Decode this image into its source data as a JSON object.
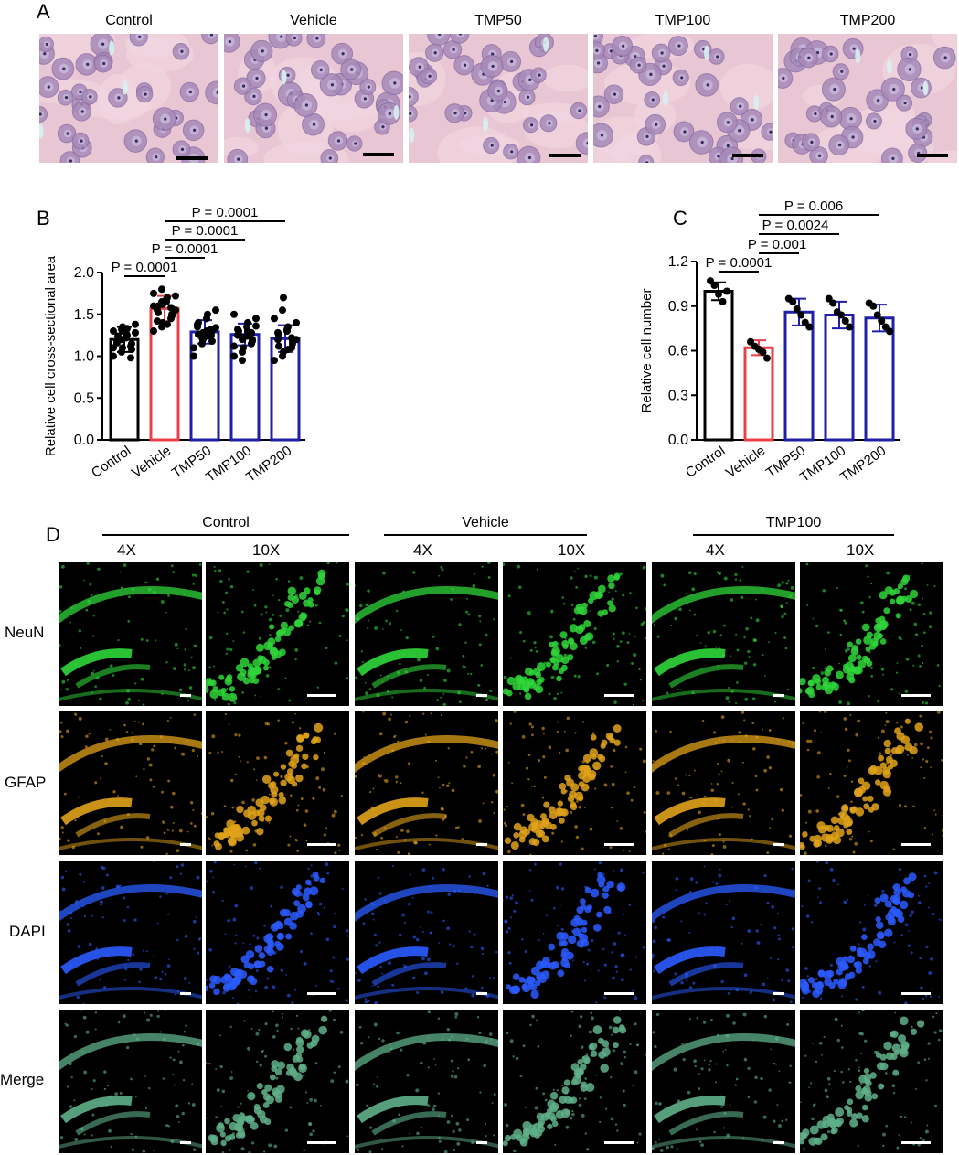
{
  "panel_a": {
    "letter": "A",
    "images": [
      {
        "label": "Control"
      },
      {
        "label": "Vehicle"
      },
      {
        "label": "TMP50"
      },
      {
        "label": "TMP100"
      },
      {
        "label": "TMP200"
      }
    ]
  },
  "panel_b": {
    "letter": "B",
    "significance": [
      "P = 0.0001",
      "P = 0.0001",
      "P = 0.0001",
      "P = 0.0001"
    ]
  },
  "panel_c": {
    "letter": "C",
    "significance": [
      "P = 0.0001",
      "P = 0.001",
      "P = 0.0024",
      "P = 0.006"
    ]
  },
  "panel_d": {
    "letter": "D",
    "groups": [
      "Control",
      "Vehicle",
      "TMP100"
    ],
    "magnifications": [
      "4X",
      "10X"
    ],
    "rows": [
      {
        "label": "NeuN",
        "color": "#2fd63a"
      },
      {
        "label": "GFAP",
        "color": "#e0a21a"
      },
      {
        "label": "DAPI",
        "color": "#2a5cff"
      },
      {
        "label": "Merge",
        "color": "#5fb08a"
      }
    ]
  },
  "chart_data": [
    {
      "type": "bar",
      "title": "",
      "xlabel": "",
      "ylabel": "Relative cell cross-sectional area",
      "categories": [
        "Control",
        "Vehicle",
        "TMP50",
        "TMP100",
        "TMP200"
      ],
      "values": [
        1.2,
        1.57,
        1.29,
        1.26,
        1.21
      ],
      "errors": [
        0.15,
        0.15,
        0.14,
        0.13,
        0.16
      ],
      "colors": [
        "#000000",
        "#e8404a",
        "#1f1fa8",
        "#1f1fa8",
        "#1f1fa8"
      ],
      "ylim": [
        0,
        2.0
      ],
      "yticks": [
        "0.0",
        "0.5",
        "1.0",
        "1.5",
        "2.0"
      ],
      "comparisons": [
        {
          "from": "Control",
          "to": "Vehicle",
          "label": "P = 0.0001"
        },
        {
          "from": "Vehicle",
          "to": "TMP50",
          "label": "P = 0.0001"
        },
        {
          "from": "Vehicle",
          "to": "TMP100",
          "label": "P = 0.0001"
        },
        {
          "from": "Vehicle",
          "to": "TMP200",
          "label": "P = 0.0001"
        }
      ],
      "points": [
        [
          1.0,
          1.05,
          1.1,
          1.12,
          1.15,
          1.18,
          1.2,
          1.22,
          1.25,
          1.28,
          1.3,
          1.32,
          1.35,
          0.98,
          1.08,
          1.16,
          1.24,
          1.27,
          1.33,
          1.38,
          1.1,
          1.2,
          1.3
        ],
        [
          1.3,
          1.35,
          1.4,
          1.45,
          1.5,
          1.55,
          1.6,
          1.65,
          1.7,
          1.72,
          1.75,
          1.8,
          1.62,
          1.58,
          1.48,
          1.42,
          1.52,
          1.68,
          1.38,
          1.55,
          1.6,
          1.65
        ],
        [
          1.1,
          1.15,
          1.2,
          1.25,
          1.3,
          1.35,
          1.4,
          1.45,
          1.5,
          1.55,
          1.0,
          1.22,
          1.28,
          1.32,
          1.18,
          1.38,
          1.26,
          1.3,
          1.24,
          1.34
        ],
        [
          1.0,
          1.05,
          1.1,
          1.15,
          1.2,
          1.25,
          1.3,
          1.35,
          1.4,
          1.45,
          1.5,
          0.95,
          1.22,
          1.28,
          1.18,
          1.32,
          1.26,
          1.24,
          1.3,
          1.36,
          1.12,
          1.2
        ],
        [
          0.95,
          1.0,
          1.05,
          1.1,
          1.15,
          1.2,
          1.25,
          1.3,
          1.35,
          1.4,
          1.45,
          1.55,
          1.7,
          1.22,
          1.18,
          1.28,
          1.12,
          1.32,
          1.08,
          1.2
        ]
      ]
    },
    {
      "type": "bar",
      "title": "",
      "xlabel": "",
      "ylabel": "Relative cell number",
      "categories": [
        "Control",
        "Vehicle",
        "TMP50",
        "TMP100",
        "TMP200"
      ],
      "values": [
        1.0,
        0.62,
        0.86,
        0.84,
        0.82
      ],
      "errors": [
        0.06,
        0.05,
        0.09,
        0.09,
        0.09
      ],
      "colors": [
        "#000000",
        "#e8404a",
        "#1f1fa8",
        "#1f1fa8",
        "#1f1fa8"
      ],
      "ylim": [
        0,
        1.2
      ],
      "yticks": [
        "0.0",
        "0.3",
        "0.6",
        "0.9",
        "1.2"
      ],
      "comparisons": [
        {
          "from": "Control",
          "to": "Vehicle",
          "label": "P = 0.0001"
        },
        {
          "from": "Vehicle",
          "to": "TMP50",
          "label": "P = 0.001"
        },
        {
          "from": "Vehicle",
          "to": "TMP100",
          "label": "P = 0.0024"
        },
        {
          "from": "Vehicle",
          "to": "TMP200",
          "label": "P = 0.006"
        }
      ],
      "points": [
        [
          1.07,
          1.04,
          0.98,
          0.93,
          1.0
        ],
        [
          0.66,
          0.63,
          0.61,
          0.59,
          0.55
        ],
        [
          0.95,
          0.93,
          0.88,
          0.84,
          0.79,
          0.76
        ],
        [
          0.95,
          0.92,
          0.86,
          0.84,
          0.8,
          0.76
        ],
        [
          0.92,
          0.9,
          0.84,
          0.8,
          0.76,
          0.73
        ]
      ]
    }
  ]
}
